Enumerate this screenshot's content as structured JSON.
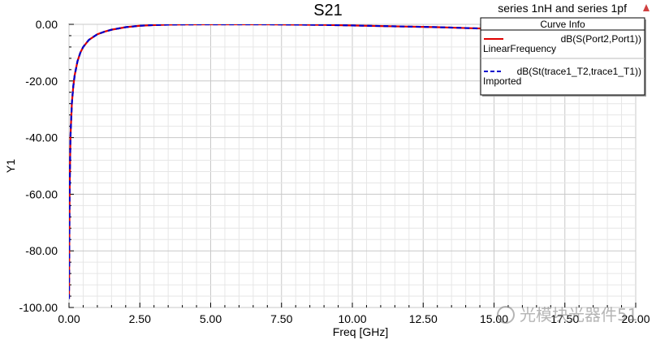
{
  "chart_data": {
    "type": "line",
    "title": "S21",
    "subtitle": "series 1nH and series 1pf",
    "xlabel": "Freq [GHz]",
    "ylabel": "Y1",
    "xlim": [
      0.0,
      20.0
    ],
    "ylim": [
      -100.0,
      0.0
    ],
    "x_ticks": [
      "0.00",
      "2.50",
      "5.00",
      "7.50",
      "10.00",
      "12.50",
      "15.00",
      "17.50",
      "20.00"
    ],
    "y_ticks": [
      "0.00",
      "-20.00",
      "-40.00",
      "-60.00",
      "-80.00",
      "-100.00"
    ],
    "grid": true,
    "legend": {
      "title": "Curve Info",
      "placement": "top-right"
    },
    "series": [
      {
        "name": "dB(S(Port2,Port1))",
        "sublabel": "LinearFrequency",
        "color": "#e00000",
        "style": "solid",
        "x": [
          0.0,
          0.02,
          0.05,
          0.1,
          0.15,
          0.2,
          0.3,
          0.4,
          0.5,
          0.7,
          1.0,
          1.25,
          1.5,
          2.0,
          2.5,
          3.0,
          3.5,
          4.0,
          5.0,
          6.0,
          7.0,
          8.0,
          9.0,
          10.0,
          11.0,
          12.0,
          13.0,
          14.0,
          15.0,
          16.0,
          17.0,
          18.0,
          19.0,
          20.0
        ],
        "y": [
          -97.0,
          -60.0,
          -40.0,
          -28.0,
          -22.0,
          -18.0,
          -13.0,
          -10.0,
          -8.0,
          -5.5,
          -3.5,
          -2.6,
          -1.9,
          -1.0,
          -0.5,
          -0.25,
          -0.1,
          -0.05,
          0.0,
          0.0,
          0.0,
          -0.1,
          -0.2,
          -0.4,
          -0.6,
          -0.8,
          -1.0,
          -1.3,
          -1.6,
          -1.9,
          -2.2,
          -2.6,
          -3.0,
          -3.5
        ]
      },
      {
        "name": "dB(St(trace1_T2,trace1_T1))",
        "sublabel": "Imported",
        "color": "#0000cc",
        "style": "dashed",
        "x": [
          0.0,
          0.02,
          0.05,
          0.1,
          0.15,
          0.2,
          0.3,
          0.4,
          0.5,
          0.7,
          1.0,
          1.25,
          1.5,
          2.0,
          2.5,
          3.0,
          3.5,
          4.0,
          5.0,
          6.0,
          7.0,
          8.0,
          9.0,
          10.0,
          11.0,
          12.0,
          13.0,
          14.0,
          15.0,
          16.0,
          17.0,
          18.0,
          19.0,
          20.0
        ],
        "y": [
          -97.0,
          -60.0,
          -40.0,
          -28.0,
          -22.0,
          -18.0,
          -13.0,
          -10.0,
          -8.0,
          -5.5,
          -3.5,
          -2.6,
          -1.9,
          -1.0,
          -0.5,
          -0.25,
          -0.1,
          -0.05,
          0.0,
          0.0,
          0.0,
          -0.1,
          -0.2,
          -0.4,
          -0.6,
          -0.8,
          -1.0,
          -1.3,
          -1.6,
          -1.9,
          -2.2,
          -2.6,
          -3.0,
          -3.5
        ]
      }
    ]
  },
  "watermark": "光模块光器件51",
  "logo_icon": "triangle-logo-icon"
}
